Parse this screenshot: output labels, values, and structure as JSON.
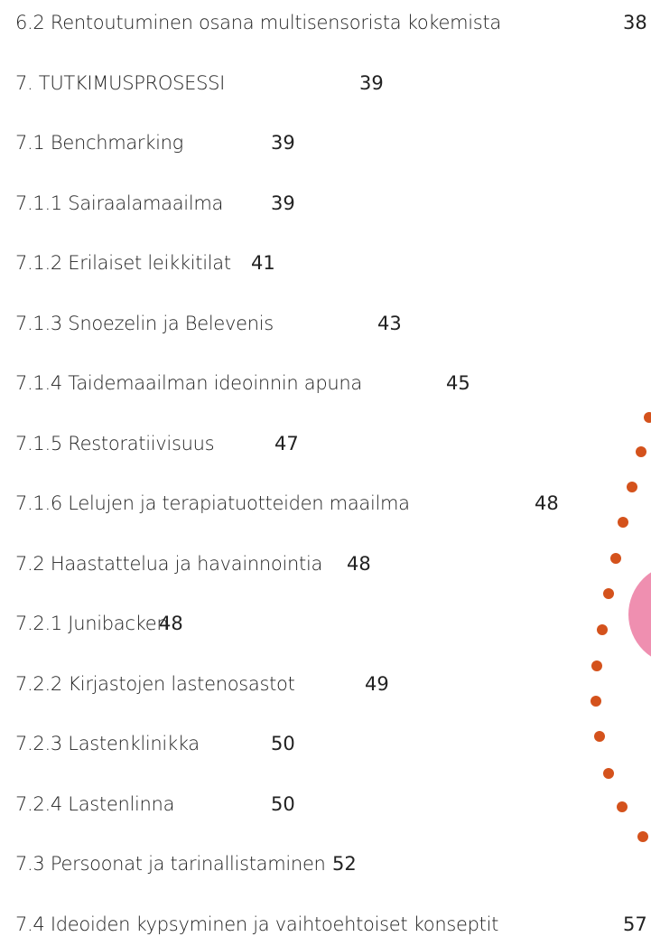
{
  "entries": [
    {
      "title": "6.2 Rentoutuminen osana multisensorista kokemista",
      "page": "38"
    },
    {
      "title": "7. TUTKIMUSPROSESSI",
      "page": "39"
    },
    {
      "title": "7.1 Benchmarking",
      "page": "39"
    },
    {
      "title": "7.1.1 Sairaalamaailma",
      "page": "39"
    },
    {
      "title": "7.1.2 Erilaiset leikkitilat",
      "page": "41"
    },
    {
      "title": "7.1.3 Snoezelin ja Belevenis",
      "page": "43"
    },
    {
      "title": "7.1.4 Taidemaailman ideoinnin apuna",
      "page": "45"
    },
    {
      "title": "7.1.5 Restoratiivisuus",
      "page": "47"
    },
    {
      "title": "7.1.6 Lelujen ja terapiatuotteiden maailma",
      "page": "48"
    },
    {
      "title": "7.2 Haastattelua ja havainnointia",
      "page": "48"
    },
    {
      "title": "7.2.1 Junibacken",
      "page": "48"
    },
    {
      "title": "7.2.2 Kirjastojen lastenosastot",
      "page": "49"
    },
    {
      "title": "7.2.3 Lastenklinikka",
      "page": "50"
    },
    {
      "title": "7.2.4 Lastenlinna",
      "page": "50"
    },
    {
      "title": "7.3 Persoonat ja tarinallistaminen",
      "page": "52"
    },
    {
      "title": "7.4 Ideoiden kypsyminen ja vaihtoehtoiset konseptit",
      "page": "57"
    }
  ]
}
